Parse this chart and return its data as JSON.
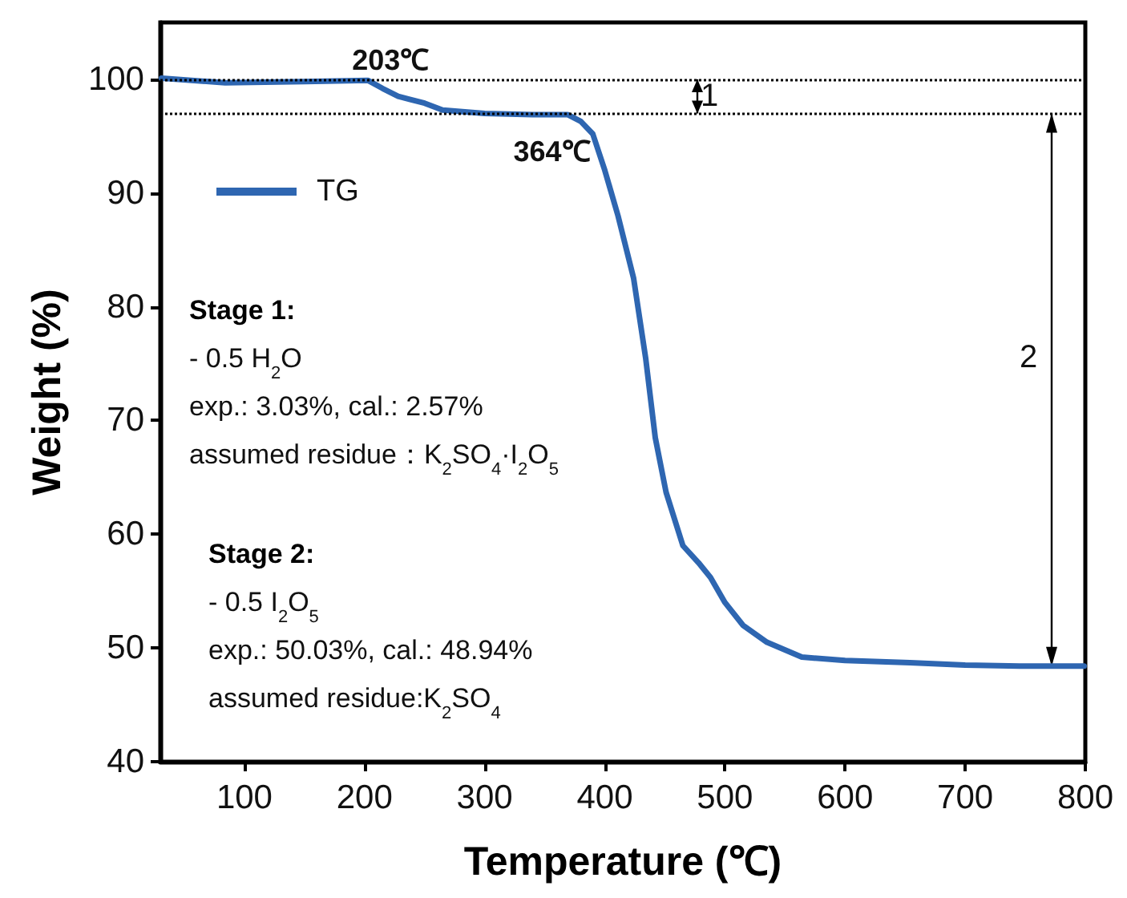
{
  "chart_data": {
    "type": "line",
    "xlabel": "Temperature (℃)",
    "ylabel": "Weight (%)",
    "xlim": [
      30,
      800
    ],
    "ylim": [
      40,
      105
    ],
    "xticks": [
      100,
      200,
      300,
      400,
      500,
      600,
      700,
      800
    ],
    "yticks": [
      40,
      50,
      60,
      70,
      80,
      90,
      100
    ],
    "grid": false,
    "legend": "top left",
    "marker": "none",
    "line_style": "solid",
    "series": [
      {
        "name": "TG",
        "color": "#2e66b1",
        "x": [
          31,
          84,
          150,
          203,
          215,
          228,
          250,
          265,
          300,
          340,
          369,
          380,
          390,
          400,
          411,
          424,
          434,
          442,
          451,
          465,
          478,
          488,
          500,
          515,
          535,
          564,
          600,
          654,
          700,
          750,
          799
        ],
        "values": [
          100.1,
          99.7,
          99.8,
          99.9,
          99.2,
          98.5,
          97.9,
          97.3,
          97.0,
          96.9,
          96.9,
          96.3,
          95.2,
          92,
          88,
          82.5,
          75.5,
          68.5,
          63.7,
          59,
          57.5,
          56.2,
          54,
          52,
          50.5,
          49.2,
          48.9,
          48.7,
          48.5,
          48.4,
          48.4
        ]
      }
    ],
    "ref_lines": [
      {
        "axis": "y",
        "value": 100,
        "line_style": "dotted",
        "color": "#000000"
      },
      {
        "axis": "y",
        "value": 97,
        "line_style": "dotted",
        "color": "#000000"
      }
    ],
    "annotations": [
      {
        "text": "203℃",
        "x": 203,
        "y": 100
      },
      {
        "text": "364℃",
        "x": 364,
        "y": 97
      },
      "1",
      "2",
      "Stage 1:\n- 0.5 H$_{2}$O\nexp.: 3.03%, cal.: 2.57%\nassumed residue：K$_{2}$SO$_{4}$·I$_{2}$O$_{5}$",
      "Stage 2:\n- 0.5 I$_{2}$O$_{5}$\nexp.: 50.03%, cal.: 48.94%\nassumed residue:K$_{2}$SO$_{4}$"
    ]
  }
}
